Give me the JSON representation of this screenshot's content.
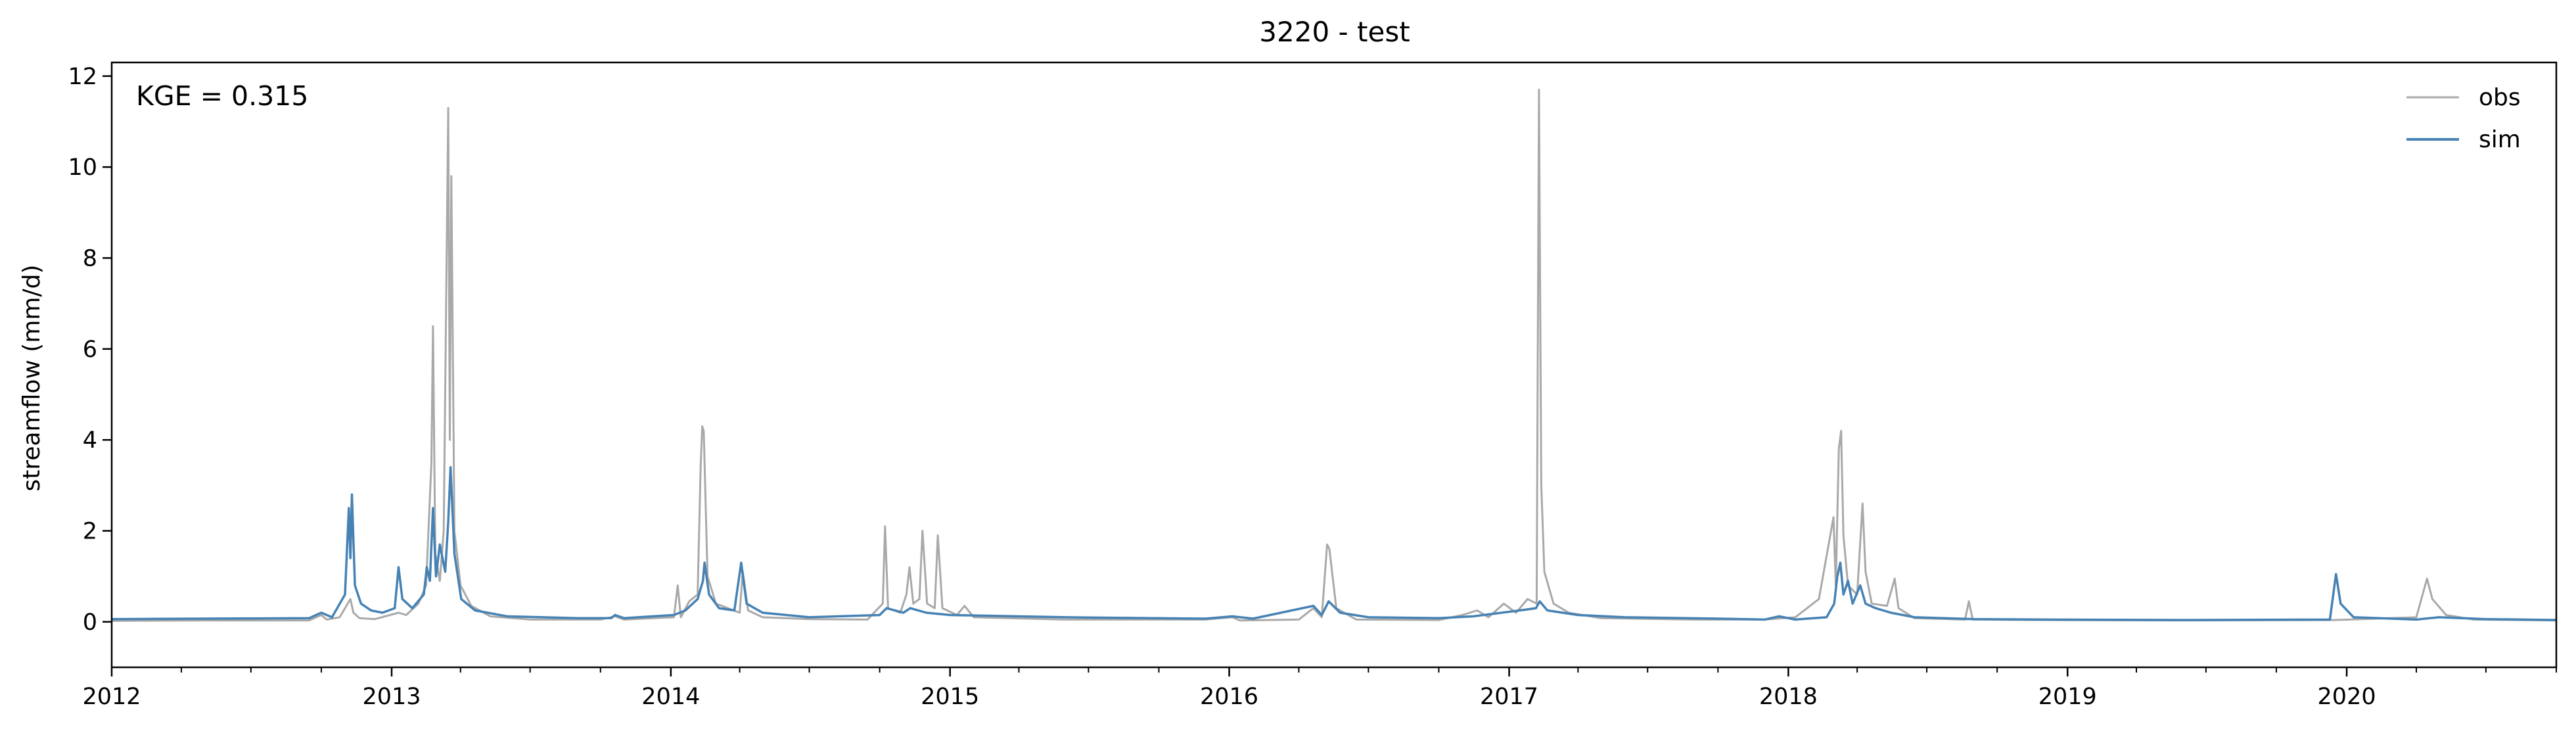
{
  "chart_data": {
    "type": "line",
    "title": "3220 - test",
    "xlabel": "",
    "ylabel": "streamflow (mm/d)",
    "xlim": [
      "2012-01-01",
      "2020-10-01"
    ],
    "ylim": [
      -1,
      12.3
    ],
    "x_ticks": [
      {
        "date": "2012-01-01",
        "label": "2012"
      },
      {
        "date": "2013-01-01",
        "label": "2013"
      },
      {
        "date": "2014-01-01",
        "label": "2014"
      },
      {
        "date": "2015-01-01",
        "label": "2015"
      },
      {
        "date": "2016-01-01",
        "label": "2016"
      },
      {
        "date": "2017-01-01",
        "label": "2017"
      },
      {
        "date": "2018-01-01",
        "label": "2018"
      },
      {
        "date": "2019-01-01",
        "label": "2019"
      },
      {
        "date": "2020-01-01",
        "label": "2020"
      }
    ],
    "y_ticks": [
      0,
      2,
      4,
      6,
      8,
      10,
      12
    ],
    "grid": false,
    "legend_position": "top-right",
    "annotation": "KGE = 0.315",
    "series": [
      {
        "name": "obs",
        "color": "#a9a9a9",
        "points": [
          [
            "2012-01-01",
            0.02
          ],
          [
            "2012-05-01",
            0.03
          ],
          [
            "2012-09-15",
            0.03
          ],
          [
            "2012-10-01",
            0.15
          ],
          [
            "2012-10-08",
            0.05
          ],
          [
            "2012-10-25",
            0.1
          ],
          [
            "2012-11-01",
            0.3
          ],
          [
            "2012-11-08",
            0.5
          ],
          [
            "2012-11-12",
            0.2
          ],
          [
            "2012-11-20",
            0.08
          ],
          [
            "2012-12-10",
            0.06
          ],
          [
            "2013-01-10",
            0.2
          ],
          [
            "2013-01-20",
            0.15
          ],
          [
            "2013-02-05",
            0.4
          ],
          [
            "2013-02-15",
            0.8
          ],
          [
            "2013-02-22",
            3.5
          ],
          [
            "2013-02-24",
            6.5
          ],
          [
            "2013-02-27",
            1.5
          ],
          [
            "2013-03-05",
            0.9
          ],
          [
            "2013-03-10",
            2.0
          ],
          [
            "2013-03-16",
            11.3
          ],
          [
            "2013-03-18",
            4.0
          ],
          [
            "2013-03-20",
            9.8
          ],
          [
            "2013-03-24",
            2.0
          ],
          [
            "2013-04-01",
            0.8
          ],
          [
            "2013-04-15",
            0.35
          ],
          [
            "2013-05-10",
            0.12
          ],
          [
            "2013-07-01",
            0.05
          ],
          [
            "2013-10-01",
            0.05
          ],
          [
            "2013-10-20",
            0.12
          ],
          [
            "2013-11-01",
            0.05
          ],
          [
            "2014-01-05",
            0.1
          ],
          [
            "2014-01-10",
            0.8
          ],
          [
            "2014-01-14",
            0.1
          ],
          [
            "2014-01-25",
            0.45
          ],
          [
            "2014-02-05",
            0.6
          ],
          [
            "2014-02-09",
            3.4
          ],
          [
            "2014-02-11",
            4.3
          ],
          [
            "2014-02-13",
            4.2
          ],
          [
            "2014-02-18",
            1.0
          ],
          [
            "2014-03-01",
            0.4
          ],
          [
            "2014-04-01",
            0.2
          ],
          [
            "2014-04-05",
            1.1
          ],
          [
            "2014-04-12",
            0.25
          ],
          [
            "2014-05-01",
            0.1
          ],
          [
            "2014-07-01",
            0.06
          ],
          [
            "2014-09-15",
            0.05
          ],
          [
            "2014-10-05",
            0.4
          ],
          [
            "2014-10-08",
            2.1
          ],
          [
            "2014-10-12",
            0.3
          ],
          [
            "2014-10-28",
            0.2
          ],
          [
            "2014-11-05",
            0.6
          ],
          [
            "2014-11-09",
            1.2
          ],
          [
            "2014-11-14",
            0.4
          ],
          [
            "2014-11-22",
            0.5
          ],
          [
            "2014-11-26",
            2.0
          ],
          [
            "2014-12-02",
            0.4
          ],
          [
            "2014-12-12",
            0.3
          ],
          [
            "2014-12-16",
            1.9
          ],
          [
            "2014-12-22",
            0.3
          ],
          [
            "2015-01-10",
            0.15
          ],
          [
            "2015-01-20",
            0.35
          ],
          [
            "2015-02-01",
            0.1
          ],
          [
            "2015-06-01",
            0.05
          ],
          [
            "2015-12-01",
            0.05
          ],
          [
            "2016-01-05",
            0.1
          ],
          [
            "2016-01-15",
            0.03
          ],
          [
            "2016-04-01",
            0.05
          ],
          [
            "2016-04-20",
            0.3
          ],
          [
            "2016-05-01",
            0.1
          ],
          [
            "2016-05-08",
            1.7
          ],
          [
            "2016-05-11",
            1.6
          ],
          [
            "2016-05-20",
            0.3
          ],
          [
            "2016-06-15",
            0.05
          ],
          [
            "2016-10-01",
            0.04
          ],
          [
            "2016-11-01",
            0.15
          ],
          [
            "2016-11-20",
            0.25
          ],
          [
            "2016-12-05",
            0.1
          ],
          [
            "2016-12-25",
            0.4
          ],
          [
            "2017-01-10",
            0.2
          ],
          [
            "2017-01-25",
            0.5
          ],
          [
            "2017-02-06",
            0.4
          ],
          [
            "2017-02-09",
            11.7
          ],
          [
            "2017-02-12",
            3.0
          ],
          [
            "2017-02-16",
            1.1
          ],
          [
            "2017-02-28",
            0.4
          ],
          [
            "2017-03-20",
            0.2
          ],
          [
            "2017-05-01",
            0.08
          ],
          [
            "2017-09-01",
            0.05
          ],
          [
            "2017-12-01",
            0.05
          ],
          [
            "2018-01-10",
            0.1
          ],
          [
            "2018-02-10",
            0.5
          ],
          [
            "2018-03-01",
            2.3
          ],
          [
            "2018-03-04",
            0.8
          ],
          [
            "2018-03-08",
            3.8
          ],
          [
            "2018-03-11",
            4.2
          ],
          [
            "2018-03-14",
            1.9
          ],
          [
            "2018-03-20",
            0.8
          ],
          [
            "2018-04-01",
            0.6
          ],
          [
            "2018-04-08",
            2.6
          ],
          [
            "2018-04-12",
            1.1
          ],
          [
            "2018-04-20",
            0.4
          ],
          [
            "2018-05-10",
            0.35
          ],
          [
            "2018-05-20",
            0.95
          ],
          [
            "2018-05-25",
            0.3
          ],
          [
            "2018-06-15",
            0.08
          ],
          [
            "2018-08-20",
            0.05
          ],
          [
            "2018-08-25",
            0.45
          ],
          [
            "2018-08-30",
            0.05
          ],
          [
            "2018-12-01",
            0.04
          ],
          [
            "2019-06-01",
            0.03
          ],
          [
            "2019-12-15",
            0.04
          ],
          [
            "2020-01-05",
            0.05
          ],
          [
            "2020-04-01",
            0.1
          ],
          [
            "2020-04-15",
            0.95
          ],
          [
            "2020-04-22",
            0.5
          ],
          [
            "2020-05-10",
            0.15
          ],
          [
            "2020-06-15",
            0.05
          ],
          [
            "2020-10-01",
            0.03
          ]
        ]
      },
      {
        "name": "sim",
        "color": "#4682b4",
        "points": [
          [
            "2012-01-01",
            0.06
          ],
          [
            "2012-05-01",
            0.07
          ],
          [
            "2012-09-15",
            0.08
          ],
          [
            "2012-10-01",
            0.2
          ],
          [
            "2012-10-15",
            0.1
          ],
          [
            "2012-11-01",
            0.6
          ],
          [
            "2012-11-06",
            2.5
          ],
          [
            "2012-11-08",
            1.4
          ],
          [
            "2012-11-10",
            2.8
          ],
          [
            "2012-11-14",
            0.8
          ],
          [
            "2012-11-22",
            0.4
          ],
          [
            "2012-12-05",
            0.25
          ],
          [
            "2012-12-20",
            0.2
          ],
          [
            "2013-01-05",
            0.3
          ],
          [
            "2013-01-10",
            1.2
          ],
          [
            "2013-01-15",
            0.5
          ],
          [
            "2013-01-28",
            0.3
          ],
          [
            "2013-02-12",
            0.6
          ],
          [
            "2013-02-16",
            1.2
          ],
          [
            "2013-02-20",
            0.9
          ],
          [
            "2013-02-24",
            2.5
          ],
          [
            "2013-02-28",
            1.0
          ],
          [
            "2013-03-05",
            1.7
          ],
          [
            "2013-03-12",
            1.1
          ],
          [
            "2013-03-16",
            2.2
          ],
          [
            "2013-03-19",
            3.4
          ],
          [
            "2013-03-24",
            1.5
          ],
          [
            "2013-04-02",
            0.5
          ],
          [
            "2013-04-20",
            0.25
          ],
          [
            "2013-06-01",
            0.12
          ],
          [
            "2013-09-01",
            0.08
          ],
          [
            "2013-10-15",
            0.08
          ],
          [
            "2013-10-20",
            0.15
          ],
          [
            "2013-11-01",
            0.08
          ],
          [
            "2014-01-05",
            0.15
          ],
          [
            "2014-01-20",
            0.25
          ],
          [
            "2014-02-05",
            0.5
          ],
          [
            "2014-02-12",
            0.9
          ],
          [
            "2014-02-14",
            1.3
          ],
          [
            "2014-02-20",
            0.6
          ],
          [
            "2014-03-05",
            0.3
          ],
          [
            "2014-03-25",
            0.25
          ],
          [
            "2014-04-03",
            1.3
          ],
          [
            "2014-04-10",
            0.4
          ],
          [
            "2014-05-01",
            0.2
          ],
          [
            "2014-07-01",
            0.1
          ],
          [
            "2014-10-01",
            0.15
          ],
          [
            "2014-10-10",
            0.3
          ],
          [
            "2014-11-01",
            0.2
          ],
          [
            "2014-11-10",
            0.3
          ],
          [
            "2014-12-01",
            0.2
          ],
          [
            "2015-01-01",
            0.15
          ],
          [
            "2015-06-01",
            0.1
          ],
          [
            "2015-12-01",
            0.07
          ],
          [
            "2016-01-05",
            0.12
          ],
          [
            "2016-02-01",
            0.07
          ],
          [
            "2016-04-20",
            0.35
          ],
          [
            "2016-05-01",
            0.15
          ],
          [
            "2016-05-10",
            0.45
          ],
          [
            "2016-05-25",
            0.2
          ],
          [
            "2016-07-01",
            0.1
          ],
          [
            "2016-10-01",
            0.08
          ],
          [
            "2016-11-15",
            0.12
          ],
          [
            "2017-01-15",
            0.25
          ],
          [
            "2017-02-05",
            0.3
          ],
          [
            "2017-02-10",
            0.45
          ],
          [
            "2017-02-20",
            0.25
          ],
          [
            "2017-04-01",
            0.15
          ],
          [
            "2017-06-01",
            0.1
          ],
          [
            "2017-10-01",
            0.07
          ],
          [
            "2017-12-01",
            0.05
          ],
          [
            "2017-12-20",
            0.12
          ],
          [
            "2018-01-10",
            0.05
          ],
          [
            "2018-02-20",
            0.1
          ],
          [
            "2018-03-02",
            0.4
          ],
          [
            "2018-03-06",
            1.0
          ],
          [
            "2018-03-10",
            1.3
          ],
          [
            "2018-03-14",
            0.6
          ],
          [
            "2018-03-20",
            0.9
          ],
          [
            "2018-03-26",
            0.4
          ],
          [
            "2018-04-05",
            0.8
          ],
          [
            "2018-04-12",
            0.4
          ],
          [
            "2018-04-25",
            0.3
          ],
          [
            "2018-05-15",
            0.2
          ],
          [
            "2018-06-15",
            0.1
          ],
          [
            "2018-09-01",
            0.06
          ],
          [
            "2018-12-01",
            0.05
          ],
          [
            "2019-06-01",
            0.04
          ],
          [
            "2019-12-10",
            0.05
          ],
          [
            "2019-12-18",
            1.05
          ],
          [
            "2019-12-24",
            0.4
          ],
          [
            "2020-01-10",
            0.1
          ],
          [
            "2020-04-01",
            0.05
          ],
          [
            "2020-05-01",
            0.1
          ],
          [
            "2020-07-01",
            0.06
          ],
          [
            "2020-10-01",
            0.04
          ]
        ]
      }
    ]
  }
}
